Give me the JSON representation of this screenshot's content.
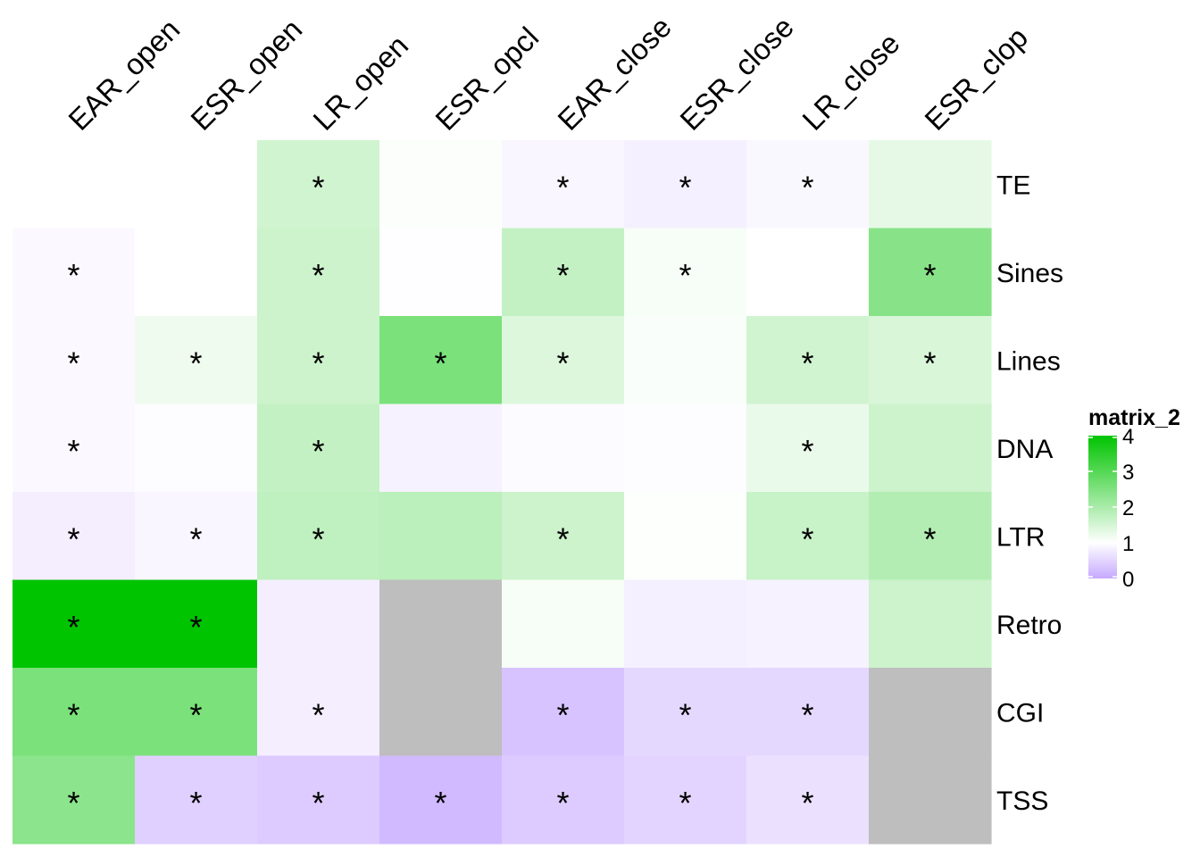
{
  "chart_data": {
    "type": "heatmap",
    "columns": [
      "EAR_open",
      "ESR_open",
      "LR_open",
      "ESR_opcl",
      "EAR_close",
      "ESR_close",
      "LR_close",
      "ESR_clop"
    ],
    "rows": [
      "TE",
      "Sines",
      "Lines",
      "DNA",
      "LTR",
      "Retro",
      "CGI",
      "TSS"
    ],
    "values": [
      [
        1.0,
        1.0,
        1.55,
        1.03,
        0.9,
        0.82,
        0.92,
        1.3
      ],
      [
        0.93,
        1.0,
        1.6,
        0.98,
        1.7,
        1.1,
        1.0,
        2.4
      ],
      [
        0.93,
        1.18,
        1.6,
        2.55,
        1.4,
        1.06,
        1.55,
        1.45
      ],
      [
        0.93,
        0.97,
        1.7,
        0.85,
        0.95,
        0.97,
        1.25,
        1.6
      ],
      [
        0.8,
        0.9,
        1.75,
        1.8,
        1.6,
        1.02,
        1.65,
        1.9
      ],
      [
        4.0,
        4.0,
        0.8,
        null,
        1.1,
        0.82,
        0.85,
        1.6
      ],
      [
        2.55,
        2.55,
        0.8,
        null,
        0.3,
        0.55,
        0.55,
        null
      ],
      [
        2.35,
        0.45,
        0.4,
        0.2,
        0.4,
        0.5,
        0.65,
        null
      ]
    ],
    "significant": [
      [
        false,
        false,
        true,
        false,
        true,
        true,
        true,
        false
      ],
      [
        true,
        false,
        true,
        false,
        true,
        true,
        false,
        true
      ],
      [
        true,
        true,
        true,
        true,
        true,
        false,
        true,
        true
      ],
      [
        true,
        false,
        true,
        false,
        false,
        false,
        true,
        false
      ],
      [
        true,
        true,
        true,
        false,
        true,
        false,
        true,
        true
      ],
      [
        true,
        true,
        false,
        false,
        false,
        false,
        false,
        false
      ],
      [
        true,
        true,
        true,
        false,
        true,
        true,
        true,
        false
      ],
      [
        true,
        true,
        true,
        true,
        true,
        true,
        true,
        false
      ]
    ],
    "significance_symbol": "*",
    "legend": {
      "title": "matrix_2",
      "ticks": [
        4,
        3,
        2,
        1,
        0
      ],
      "placement": "right",
      "range": [
        0,
        4
      ],
      "mid": 1
    },
    "colors": {
      "low": "#c6a9ff",
      "mid": "#ffffff",
      "high": "#00c400",
      "na": "#bebebe"
    }
  }
}
